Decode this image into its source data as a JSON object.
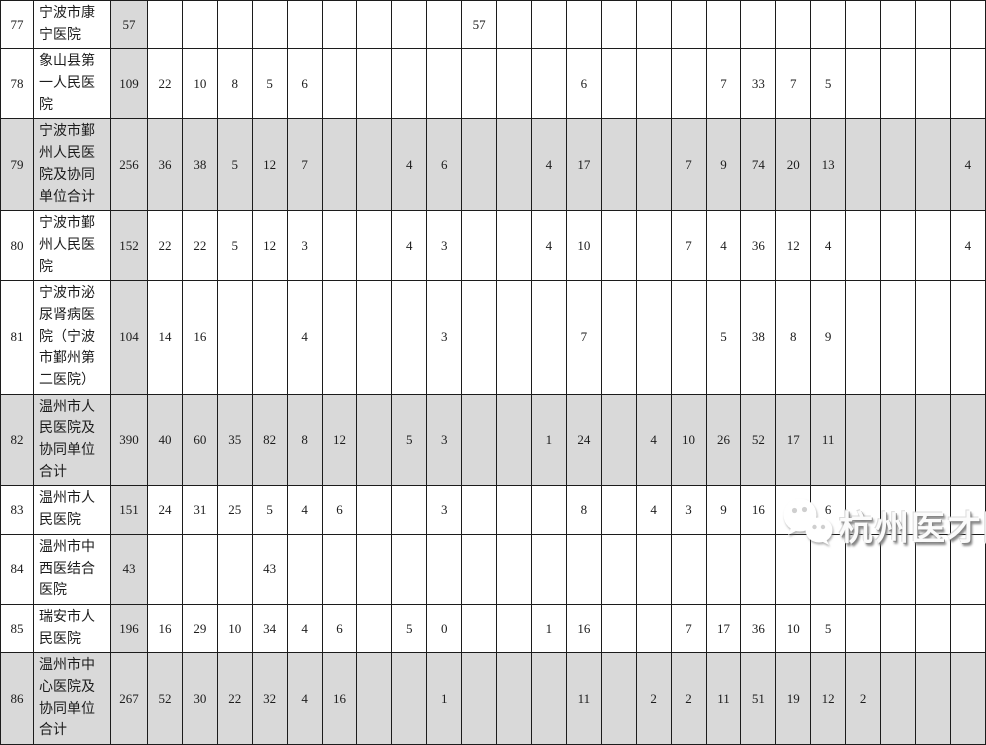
{
  "colors": {
    "row_highlight": "#d9d9d9",
    "border": "#1c1c1c",
    "watermark_text": "#fbfbfb"
  },
  "watermark": {
    "label": "杭州医才园",
    "icon": "wechat-icon"
  },
  "table": {
    "value_column_count": 24,
    "rows": [
      {
        "no": "77",
        "name": "宁波市康宁医院",
        "total": "57",
        "shaded": false,
        "values": [
          "",
          "",
          "",
          "",
          "",
          "",
          "",
          "",
          "",
          "57",
          "",
          "",
          "",
          "",
          "",
          "",
          "",
          "",
          "",
          "",
          "",
          "",
          "",
          ""
        ]
      },
      {
        "no": "78",
        "name": "象山县第一人民医院",
        "total": "109",
        "shaded": false,
        "values": [
          "22",
          "10",
          "8",
          "5",
          "6",
          "",
          "",
          "",
          "",
          "",
          "",
          "",
          "6",
          "",
          "",
          "",
          "7",
          "33",
          "7",
          "5",
          "",
          "",
          "",
          ""
        ]
      },
      {
        "no": "79",
        "name": "宁波市鄞州人民医院及协同单位合计",
        "total": "256",
        "shaded": true,
        "values": [
          "36",
          "38",
          "5",
          "12",
          "7",
          "",
          "",
          "4",
          "6",
          "",
          "",
          "4",
          "17",
          "",
          "",
          "7",
          "9",
          "74",
          "20",
          "13",
          "",
          "",
          "",
          "4"
        ]
      },
      {
        "no": "80",
        "name": "宁波市鄞州人民医院",
        "total": "152",
        "shaded": false,
        "values": [
          "22",
          "22",
          "5",
          "12",
          "3",
          "",
          "",
          "4",
          "3",
          "",
          "",
          "4",
          "10",
          "",
          "",
          "7",
          "4",
          "36",
          "12",
          "4",
          "",
          "",
          "",
          "4"
        ]
      },
      {
        "no": "81",
        "name": "宁波市泌尿肾病医院（宁波市鄞州第二医院）",
        "total": "104",
        "shaded": false,
        "values": [
          "14",
          "16",
          "",
          "",
          "4",
          "",
          "",
          "",
          "3",
          "",
          "",
          "",
          "7",
          "",
          "",
          "",
          "5",
          "38",
          "8",
          "9",
          "",
          "",
          "",
          ""
        ]
      },
      {
        "no": "82",
        "name": "温州市人民医院及协同单位合计",
        "total": "390",
        "shaded": true,
        "values": [
          "40",
          "60",
          "35",
          "82",
          "8",
          "12",
          "",
          "5",
          "3",
          "",
          "",
          "1",
          "24",
          "",
          "4",
          "10",
          "26",
          "52",
          "17",
          "11",
          "",
          "",
          "",
          ""
        ]
      },
      {
        "no": "83",
        "name": "温州市人民医院",
        "total": "151",
        "shaded": false,
        "values": [
          "24",
          "31",
          "25",
          "5",
          "4",
          "6",
          "",
          "",
          "3",
          "",
          "",
          "",
          "8",
          "",
          "4",
          "3",
          "9",
          "16",
          "7",
          "6",
          "",
          "",
          "",
          ""
        ]
      },
      {
        "no": "84",
        "name": "温州市中西医结合医院",
        "total": "43",
        "shaded": false,
        "values": [
          "",
          "",
          "",
          "43",
          "",
          "",
          "",
          "",
          "",
          "",
          "",
          "",
          "",
          "",
          "",
          "",
          "",
          "",
          "",
          "",
          "",
          "",
          "",
          ""
        ]
      },
      {
        "no": "85",
        "name": "瑞安市人民医院",
        "total": "196",
        "shaded": false,
        "values": [
          "16",
          "29",
          "10",
          "34",
          "4",
          "6",
          "",
          "5",
          "0",
          "",
          "",
          "1",
          "16",
          "",
          "",
          "7",
          "17",
          "36",
          "10",
          "5",
          "",
          "",
          "",
          ""
        ]
      },
      {
        "no": "86",
        "name": "温州市中心医院及协同单位合计",
        "total": "267",
        "shaded": true,
        "values": [
          "52",
          "30",
          "22",
          "32",
          "4",
          "16",
          "",
          "",
          "1",
          "",
          "",
          "",
          "11",
          "",
          "2",
          "2",
          "11",
          "51",
          "19",
          "12",
          "2",
          "",
          "",
          ""
        ]
      }
    ]
  }
}
